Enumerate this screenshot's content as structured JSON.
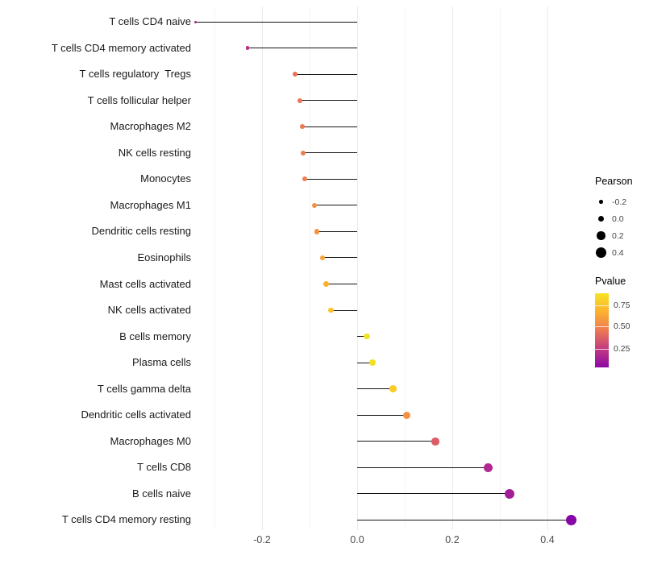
{
  "chart_data": {
    "type": "scatter",
    "subtype": "lollipop",
    "title": "",
    "xlabel": "",
    "ylabel": "",
    "xlim": [
      -0.37,
      0.5
    ],
    "grid": true,
    "axis": {
      "major": [
        -0.2,
        0.0,
        0.2,
        0.4
      ],
      "minor": [
        -0.3,
        -0.1,
        0.1,
        0.3
      ],
      "tick_labels": [
        "-0.2",
        "0.0",
        "0.2",
        "0.4"
      ]
    },
    "size_encodes": "Pearson",
    "color_encodes": "Pvalue",
    "points": [
      {
        "label": "T cells CD4 naive",
        "pearson": -0.34,
        "color": "#a32296"
      },
      {
        "label": "T cells CD4 memory activated",
        "pearson": -0.23,
        "color": "#b93088"
      },
      {
        "label": "T cells regulatory  Tregs",
        "pearson": -0.13,
        "color": "#ea7158"
      },
      {
        "label": "T cells follicular helper",
        "pearson": -0.12,
        "color": "#ec7656"
      },
      {
        "label": "Macrophages M2",
        "pearson": -0.115,
        "color": "#ed7a53"
      },
      {
        "label": "NK cells resting",
        "pearson": -0.113,
        "color": "#ee7c51"
      },
      {
        "label": "Monocytes",
        "pearson": -0.11,
        "color": "#ef7f4f"
      },
      {
        "label": "Macrophages M1",
        "pearson": -0.09,
        "color": "#f58f45"
      },
      {
        "label": "Dendritic cells resting",
        "pearson": -0.085,
        "color": "#f7923f"
      },
      {
        "label": "Eosinophils",
        "pearson": -0.073,
        "color": "#f9a238"
      },
      {
        "label": "Mast cells activated",
        "pearson": -0.065,
        "color": "#fbb02e"
      },
      {
        "label": "NK cells activated",
        "pearson": -0.055,
        "color": "#fcc227"
      },
      {
        "label": "B cells memory",
        "pearson": 0.02,
        "color": "#f2e224"
      },
      {
        "label": "Plasma cells",
        "pearson": 0.032,
        "color": "#f4de25"
      },
      {
        "label": "T cells gamma delta",
        "pearson": 0.075,
        "color": "#fbcb26"
      },
      {
        "label": "Dendritic cells activated",
        "pearson": 0.105,
        "color": "#f39142"
      },
      {
        "label": "Macrophages M0",
        "pearson": 0.165,
        "color": "#db5c68"
      },
      {
        "label": "T cells CD8",
        "pearson": 0.275,
        "color": "#b02991"
      },
      {
        "label": "B cells naive",
        "pearson": 0.32,
        "color": "#a21d9a"
      },
      {
        "label": "T cells CD4 memory resting",
        "pearson": 0.45,
        "color": "#8606a6"
      }
    ],
    "legend": {
      "size": {
        "title": "Pearson",
        "entries": [
          {
            "label": "-0.2",
            "value": -0.2
          },
          {
            "label": "0.0",
            "value": 0.0
          },
          {
            "label": "0.2",
            "value": 0.2
          },
          {
            "label": "0.4",
            "value": 0.4
          }
        ]
      },
      "color": {
        "title": "Pvalue",
        "gradient": [
          "#f7e225",
          "#fcb130",
          "#ed7953",
          "#c13a82",
          "#8c09a5"
        ],
        "labels": [
          {
            "label": "0.75",
            "pos": 0.16
          },
          {
            "label": "0.50",
            "pos": 0.45
          },
          {
            "label": "0.25",
            "pos": 0.75
          }
        ]
      }
    }
  }
}
